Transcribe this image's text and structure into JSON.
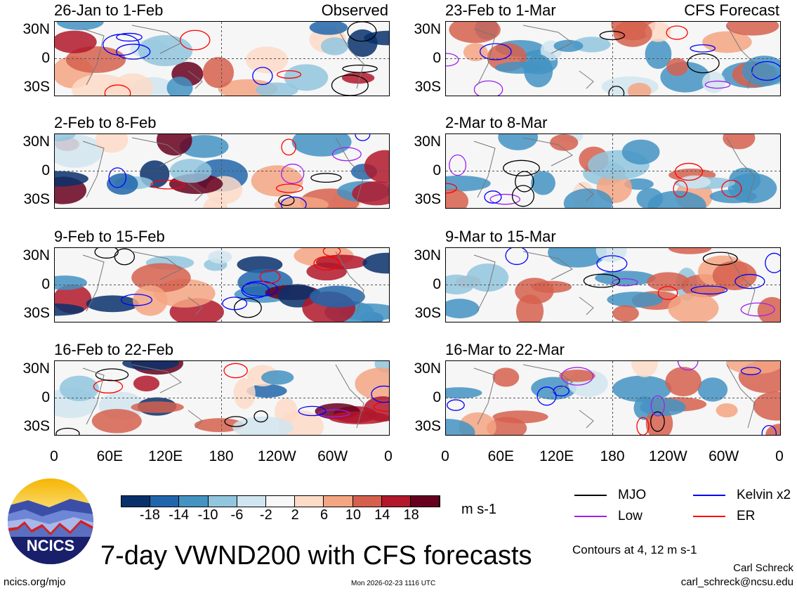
{
  "title": "7-day VWND200 with CFS forecasts",
  "contours_note": "Contours at 4, 12 m s-1",
  "author": "Carl Schreck",
  "email": "carl_schreck@ncsu.edu",
  "site": "ncics.org/mjo",
  "timestamp": "Mon 2026-02-23 1116 UTC",
  "logo_text": "NCICS",
  "chart_data": {
    "type": "heatmap",
    "variable": "200-hPa meridional wind anomaly",
    "units": "m s-1",
    "lat_ticks": [
      "30N",
      "0",
      "30S"
    ],
    "lon_ticks": [
      "0",
      "60E",
      "120E",
      "180",
      "120W",
      "60W",
      "0"
    ],
    "panels": [
      {
        "label": "26-Jan to 1-Feb",
        "tag": "Observed",
        "column": "left"
      },
      {
        "label": "2-Feb to 8-Feb",
        "tag": "",
        "column": "left"
      },
      {
        "label": "9-Feb to 15-Feb",
        "tag": "",
        "column": "left"
      },
      {
        "label": "16-Feb to 22-Feb",
        "tag": "",
        "column": "left"
      },
      {
        "label": "23-Feb to 1-Mar",
        "tag": "CFS Forecast",
        "column": "right"
      },
      {
        "label": "2-Mar to 8-Mar",
        "tag": "",
        "column": "right"
      },
      {
        "label": "9-Mar to 15-Mar",
        "tag": "",
        "column": "right"
      },
      {
        "label": "16-Mar to 22-Mar",
        "tag": "",
        "column": "right"
      }
    ],
    "colorbar": {
      "labels": [
        "-18",
        "-14",
        "-10",
        "-6",
        "-2",
        "2",
        "6",
        "10",
        "14",
        "18"
      ],
      "colors": [
        "#08306b",
        "#2166ac",
        "#4393c3",
        "#92c5de",
        "#d1e5f0",
        "#f7f7f7",
        "#fddbc7",
        "#f4a582",
        "#d6604d",
        "#b2182b",
        "#67001f"
      ],
      "units": "m s-1"
    },
    "legend": [
      {
        "label": "MJO",
        "color": "#000000"
      },
      {
        "label": "Kelvin x2",
        "color": "#0000ff"
      },
      {
        "label": "Low",
        "color": "#a020f0"
      },
      {
        "label": "ER",
        "color": "#ff0000"
      }
    ]
  }
}
